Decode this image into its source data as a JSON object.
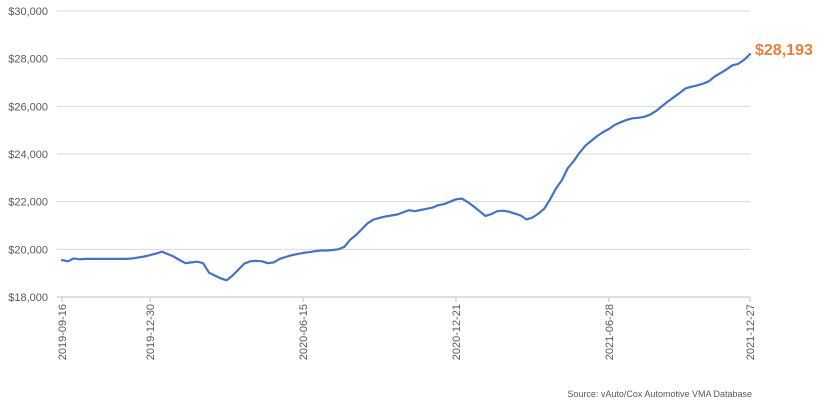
{
  "chart_data": {
    "type": "line",
    "title": "",
    "xlabel": "",
    "ylabel": "",
    "ylim": [
      18000,
      30000
    ],
    "yticks": [
      18000,
      20000,
      22000,
      24000,
      26000,
      28000,
      30000
    ],
    "ytick_labels": [
      "$18,000",
      "$20,000",
      "$22,000",
      "$24,000",
      "$26,000",
      "$28,000",
      "$30,000"
    ],
    "xtick_labels": [
      "2019-09-16",
      "2019-12-30",
      "2020-06-15",
      "2020-12-21",
      "2021-06-28",
      "2021-12-27"
    ],
    "grid": "horizontal",
    "line_color": "#4472C4",
    "end_label": "$28,193",
    "end_label_color": "#ED7D31",
    "series": [
      {
        "values": [
          19550,
          19500,
          19620,
          19580,
          19600,
          19600,
          19600,
          19600,
          19600,
          19600,
          19600,
          19600,
          19620,
          19660,
          19700,
          19760,
          19820,
          19900,
          19800,
          19700,
          19550,
          19420,
          19450,
          19480,
          19420,
          19020,
          18900,
          18780,
          18700,
          18900,
          19150,
          19400,
          19500,
          19520,
          19500,
          19420,
          19450,
          19600,
          19680,
          19750,
          19800,
          19850,
          19880,
          19920,
          19950,
          19950,
          19970,
          20000,
          20100,
          20400,
          20600,
          20850,
          21100,
          21250,
          21320,
          21380,
          21420,
          21460,
          21550,
          21640,
          21600,
          21650,
          21700,
          21750,
          21850,
          21900,
          22000,
          22100,
          22130,
          21980,
          21800,
          21600,
          21400,
          21480,
          21600,
          21620,
          21580,
          21500,
          21420,
          21250,
          21330,
          21500,
          21700,
          22100,
          22550,
          22900,
          23400,
          23700,
          24050,
          24350,
          24550,
          24750,
          24920,
          25050,
          25220,
          25330,
          25430,
          25500,
          25520,
          25560,
          25650,
          25800,
          26000,
          26200,
          26380,
          26550,
          26750,
          26820,
          26880,
          26950,
          27050,
          27250,
          27400,
          27550,
          27720,
          27780,
          27950,
          28193
        ]
      }
    ],
    "source": "Source: vAuto/Cox Automotive VMA Database"
  }
}
